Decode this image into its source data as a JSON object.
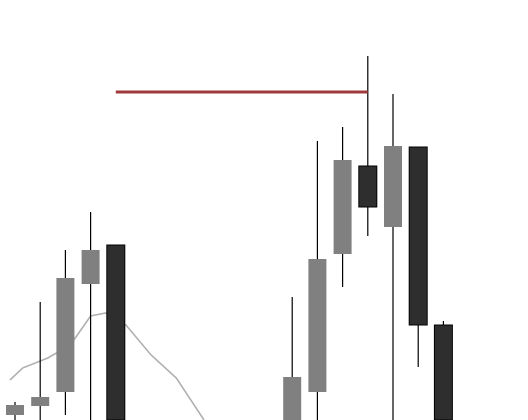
{
  "chart_data": {
    "type": "candlestick",
    "x_index": [
      0,
      1,
      2,
      3,
      4,
      5,
      6,
      7,
      8,
      9,
      10,
      11,
      12,
      13,
      14,
      15,
      16,
      17
    ],
    "ylim": [
      0,
      420
    ],
    "grid": false,
    "legend": "none",
    "candles": [
      {
        "i": 0,
        "open": 5,
        "close": 15,
        "high": 18,
        "low": 0
      },
      {
        "i": 1,
        "open": 14,
        "close": 23,
        "high": 118,
        "low": 0
      },
      {
        "i": 2,
        "open": 28,
        "close": 142,
        "high": 170,
        "low": 5
      },
      {
        "i": 3,
        "open": 136,
        "close": 170,
        "high": 208,
        "low": 0
      },
      {
        "i": 4,
        "open": 175,
        "close": 0,
        "high": 175,
        "low": 0
      },
      {
        "i": 11,
        "open": 0,
        "close": 43,
        "high": 123,
        "low": 0
      },
      {
        "i": 12,
        "open": 28,
        "close": 161,
        "high": 279,
        "low": 0
      },
      {
        "i": 13,
        "open": 166,
        "close": 260,
        "high": 293,
        "low": 133
      },
      {
        "i": 14,
        "open": 254,
        "close": 213,
        "high": 364,
        "low": 184
      },
      {
        "i": 15,
        "open": 193,
        "close": 274,
        "high": 326,
        "low": 0
      },
      {
        "i": 16,
        "open": 273,
        "close": 95,
        "high": 273,
        "low": 53
      },
      {
        "i": 17,
        "open": 95,
        "close": 0,
        "high": 99,
        "low": 0
      }
    ],
    "moving_average": {
      "points": [
        {
          "i": -0.2,
          "v": 40
        },
        {
          "i": 0.3,
          "v": 52
        },
        {
          "i": 1.3,
          "v": 62
        },
        {
          "i": 2.2,
          "v": 75
        },
        {
          "i": 3.0,
          "v": 104
        },
        {
          "i": 3.6,
          "v": 107
        },
        {
          "i": 4.4,
          "v": 95
        },
        {
          "i": 5.4,
          "v": 65
        },
        {
          "i": 6.4,
          "v": 42
        },
        {
          "i": 7.5,
          "v": 0
        }
      ]
    },
    "reference_line": {
      "from_i": 4,
      "to_i": 14,
      "value": 328
    }
  },
  "colors": {
    "bull": "#808080",
    "bear": "#2e2e2e",
    "wick": "#000000",
    "ma": "#b0b0b0",
    "reference": "#a03a3a"
  }
}
